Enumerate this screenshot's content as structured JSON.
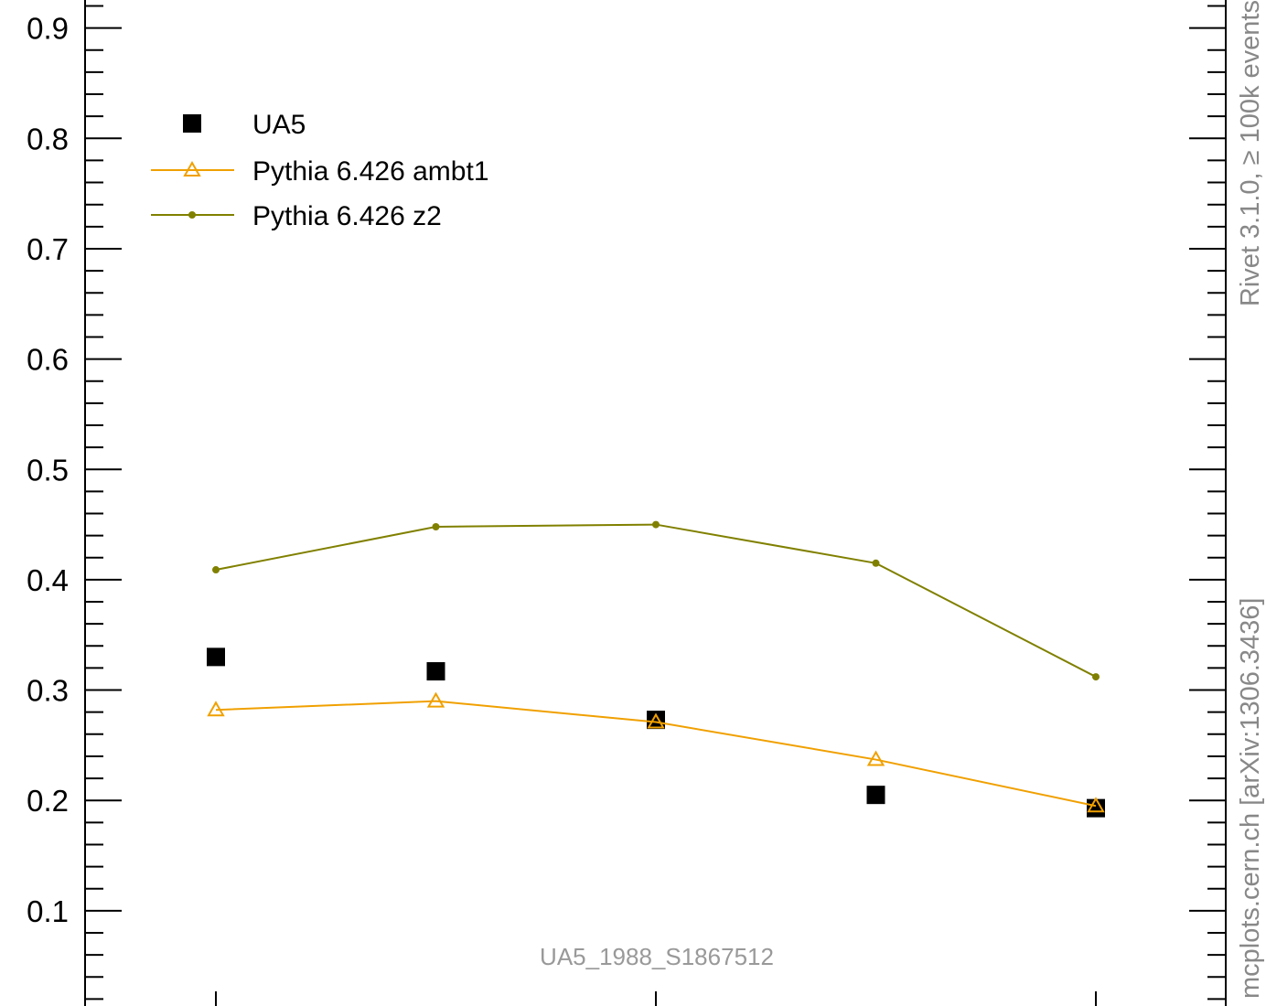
{
  "chart_data": {
    "type": "line",
    "title": "",
    "xlabel": "",
    "ylabel": "",
    "ylim": [
      0.015,
      0.935
    ],
    "x": [
      1,
      2,
      3,
      4,
      5
    ],
    "y_ticks": [
      "0.1",
      "0.2",
      "0.3",
      "0.4",
      "0.5",
      "0.6",
      "0.7",
      "0.8",
      "0.9"
    ],
    "y_tick_values": [
      0.1,
      0.2,
      0.3,
      0.4,
      0.5,
      0.6,
      0.7,
      0.8,
      0.9
    ],
    "legend_position": "top-left",
    "series": [
      {
        "name": "UA5",
        "style": "markers",
        "marker": "square",
        "color": "#000000",
        "values": [
          0.33,
          0.317,
          0.273,
          0.205,
          0.193
        ]
      },
      {
        "name": "Pythia 6.426 ambt1",
        "style": "line",
        "marker": "open-triangle",
        "color": "#f0a000",
        "values": [
          0.282,
          0.29,
          0.271,
          0.237,
          0.195
        ]
      },
      {
        "name": "Pythia 6.426 z2",
        "style": "line",
        "marker": "dot",
        "color": "#808000",
        "values": [
          0.409,
          0.448,
          0.45,
          0.415,
          0.312
        ]
      }
    ],
    "annotation": "UA5_1988_S1867512"
  },
  "side_labels": {
    "top": "Rivet 3.1.0, ≥ 100k events",
    "bottom": "mcplots.cern.ch [arXiv:1306.3436]"
  }
}
